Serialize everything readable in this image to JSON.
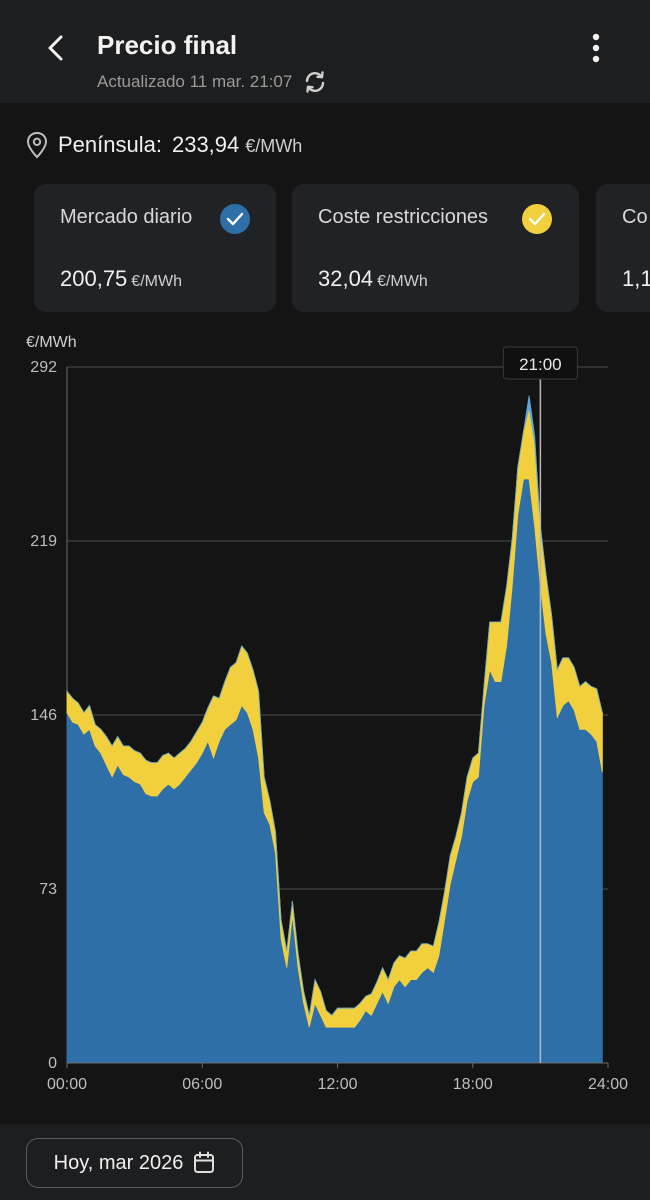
{
  "header": {
    "title": "Precio final",
    "updated": "Actualizado 11 mar. 21:07"
  },
  "location": {
    "name": "Península:",
    "value": "233,94",
    "unit": "€/MWh"
  },
  "cards": [
    {
      "label": "Mercado diario",
      "value": "200,75",
      "unit": "€/MWh",
      "color": "#2f6fa8"
    },
    {
      "label": "Coste restricciones",
      "value": "32,04",
      "unit": "€/MWh",
      "color": "#f2cf3c"
    },
    {
      "label": "Co",
      "value": "1,1",
      "unit": "",
      "color": ""
    }
  ],
  "chart_data": {
    "type": "area",
    "stacked": true,
    "ylabel": "€/MWh",
    "ylim": [
      0,
      292
    ],
    "yticks": [
      "0",
      "73",
      "146",
      "219",
      "292"
    ],
    "xticks": [
      "00:00",
      "06:00",
      "12:00",
      "18:00",
      "24:00"
    ],
    "xlim": [
      0,
      24
    ],
    "cursor": {
      "label": "21:00",
      "x": 21
    },
    "grid": true,
    "x": [
      0,
      0.25,
      0.5,
      0.75,
      1,
      1.25,
      1.5,
      1.75,
      2,
      2.25,
      2.5,
      2.75,
      3,
      3.25,
      3.5,
      3.75,
      4,
      4.25,
      4.5,
      4.75,
      5,
      5.25,
      5.5,
      5.75,
      6,
      6.25,
      6.5,
      6.75,
      7,
      7.25,
      7.5,
      7.75,
      8,
      8.25,
      8.5,
      8.75,
      9,
      9.25,
      9.5,
      9.75,
      10,
      10.25,
      10.5,
      10.75,
      11,
      11.25,
      11.5,
      11.75,
      12,
      12.25,
      12.5,
      12.75,
      13,
      13.25,
      13.5,
      13.75,
      14,
      14.25,
      14.5,
      14.75,
      15,
      15.25,
      15.5,
      15.75,
      16,
      16.25,
      16.5,
      16.75,
      17,
      17.25,
      17.5,
      17.75,
      18,
      18.25,
      18.5,
      18.75,
      19,
      19.25,
      19.5,
      19.75,
      20,
      20.25,
      20.5,
      20.75,
      21,
      21.25,
      21.5,
      21.75,
      22,
      22.25,
      22.5,
      22.75,
      23,
      23.25,
      23.5,
      23.75
    ],
    "series": [
      {
        "color": "#2f6fa8",
        "values": [
          147,
          143,
          142,
          138,
          140,
          133,
          130,
          125,
          120,
          125,
          121,
          120,
          118,
          117,
          113,
          112,
          112,
          115,
          117,
          115,
          117,
          120,
          123,
          126,
          130,
          135,
          128,
          135,
          140,
          142,
          144,
          150,
          147,
          140,
          128,
          105,
          100,
          88,
          52,
          40,
          62,
          40,
          25,
          15,
          25,
          20,
          15,
          15,
          15,
          15,
          15,
          15,
          18,
          22,
          20,
          25,
          30,
          25,
          32,
          35,
          32,
          35,
          35,
          38,
          40,
          38,
          45,
          60,
          75,
          85,
          95,
          110,
          118,
          120,
          150,
          165,
          160,
          160,
          175,
          200,
          230,
          245,
          245,
          225,
          200,
          180,
          168,
          145,
          150,
          152,
          148,
          140,
          140,
          138,
          135,
          122
        ]
      },
      {
        "color": "#f2cf3c",
        "values": [
          9,
          10,
          9,
          9,
          10,
          9,
          10,
          12,
          13,
          12,
          12,
          13,
          13,
          13,
          14,
          14,
          14,
          14,
          13,
          13,
          13,
          12,
          12,
          13,
          13,
          14,
          26,
          18,
          20,
          24,
          24,
          25,
          25,
          25,
          28,
          15,
          10,
          9,
          8,
          7,
          6,
          6,
          5,
          5,
          10,
          10,
          7,
          5,
          8,
          8,
          8,
          8,
          7,
          6,
          9,
          9,
          10,
          10,
          10,
          10,
          12,
          12,
          12,
          12,
          10,
          11,
          14,
          12,
          12,
          10,
          10,
          10,
          10,
          10,
          8,
          20,
          25,
          25,
          25,
          20,
          20,
          20,
          30,
          35,
          25,
          25,
          20,
          20,
          20,
          18,
          18,
          18,
          20,
          20,
          22,
          25
        ]
      },
      {
        "color": "#5fa8d8",
        "values": [
          0,
          0,
          0,
          0,
          0,
          0,
          0,
          0,
          0,
          0,
          0,
          0,
          0,
          0,
          0,
          0,
          0,
          0,
          0,
          0,
          0,
          0,
          0,
          0,
          0,
          0,
          0,
          0,
          0,
          0,
          0,
          0,
          0,
          0,
          0,
          0,
          0,
          0,
          0,
          0,
          0,
          0,
          0,
          0,
          0,
          0,
          0,
          0,
          0,
          0,
          0,
          0,
          0,
          0,
          0,
          0,
          0,
          0,
          0,
          0,
          0,
          0,
          0,
          0,
          0,
          0,
          0,
          0,
          0,
          0,
          0,
          0,
          0,
          0,
          0,
          0,
          0,
          0,
          0,
          0,
          0,
          0,
          5,
          3,
          0,
          0,
          0,
          0,
          0,
          0,
          0,
          0,
          0,
          0,
          0,
          0
        ]
      }
    ]
  },
  "bottom": {
    "date_label": "Hoy, mar 2026"
  }
}
